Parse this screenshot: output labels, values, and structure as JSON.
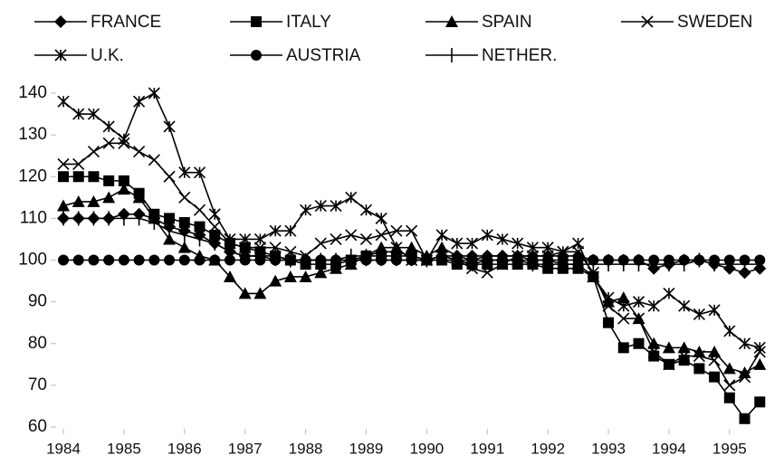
{
  "chart_data": {
    "type": "line",
    "x": [
      1984,
      1984.25,
      1984.5,
      1984.75,
      1985,
      1985.25,
      1985.5,
      1985.75,
      1986,
      1986.25,
      1986.5,
      1986.75,
      1987,
      1987.25,
      1987.5,
      1987.75,
      1988,
      1988.25,
      1988.5,
      1988.75,
      1989,
      1989.25,
      1989.5,
      1989.75,
      1990,
      1990.25,
      1990.5,
      1990.75,
      1991,
      1991.25,
      1991.5,
      1991.75,
      1992,
      1992.25,
      1992.5,
      1992.75,
      1993,
      1993.25,
      1993.5,
      1993.75,
      1994,
      1994.25,
      1994.5,
      1994.75,
      1995,
      1995.25,
      1995.5
    ],
    "xlim": [
      1984,
      1995.75
    ],
    "xticks": [
      1984,
      1985,
      1986,
      1987,
      1988,
      1989,
      1990,
      1991,
      1992,
      1993,
      1994,
      1995
    ],
    "ylim": [
      60,
      140
    ],
    "yticks": [
      60,
      70,
      80,
      90,
      100,
      110,
      120,
      130,
      140
    ],
    "series": [
      {
        "name": "FRANCE",
        "color": "#000000",
        "marker": "diamond",
        "values": [
          110,
          110,
          110,
          110,
          111,
          111,
          110,
          108,
          107,
          106,
          104,
          102,
          101,
          101,
          100,
          100,
          100,
          100,
          100,
          100,
          100,
          100,
          100,
          100,
          100,
          101,
          101,
          101,
          101,
          101,
          101,
          101,
          101,
          101,
          101,
          100,
          100,
          100,
          100,
          98,
          99,
          100,
          100,
          99,
          98,
          97,
          98
        ]
      },
      {
        "name": "ITALY",
        "color": "#000000",
        "marker": "square",
        "values": [
          120,
          120,
          120,
          119,
          119,
          116,
          111,
          110,
          109,
          108,
          106,
          104,
          103,
          102,
          101,
          100,
          99,
          99,
          99,
          100,
          101,
          101,
          101,
          101,
          100,
          100,
          99,
          99,
          99,
          99,
          99,
          99,
          98,
          98,
          98,
          96,
          85,
          79,
          80,
          77,
          75,
          76,
          74,
          72,
          67,
          62,
          66
        ]
      },
      {
        "name": "SPAIN",
        "color": "#000000",
        "marker": "triangle",
        "values": [
          113,
          114,
          114,
          115,
          117,
          115,
          110,
          105,
          103,
          101,
          100,
          96,
          92,
          92,
          95,
          96,
          96,
          97,
          98,
          99,
          101,
          103,
          103,
          103,
          101,
          103,
          101,
          100,
          101,
          101,
          101,
          100,
          100,
          99,
          99,
          96,
          90,
          91,
          86,
          80,
          79,
          79,
          78,
          78,
          74,
          73,
          75
        ]
      },
      {
        "name": "SWEDEN",
        "color": "#000000",
        "marker": "x",
        "values": [
          123,
          123,
          126,
          128,
          128,
          126,
          124,
          120,
          115,
          112,
          108,
          104,
          103,
          103,
          103,
          102,
          101,
          104,
          105,
          106,
          105,
          106,
          107,
          107,
          100,
          101,
          100,
          98,
          97,
          99,
          101,
          101,
          101,
          102,
          102,
          97,
          89,
          86,
          86,
          78,
          75,
          77,
          77,
          76,
          70,
          72,
          78
        ]
      },
      {
        "name": "U.K.",
        "color": "#000000",
        "marker": "star",
        "values": [
          138,
          135,
          135,
          132,
          129,
          138,
          140,
          132,
          121,
          121,
          111,
          105,
          105,
          105,
          107,
          107,
          112,
          113,
          113,
          115,
          112,
          110,
          103,
          100,
          100,
          106,
          104,
          104,
          106,
          105,
          104,
          103,
          103,
          102,
          104,
          96,
          91,
          89,
          90,
          89,
          92,
          89,
          87,
          88,
          83,
          80,
          79
        ]
      },
      {
        "name": "AUSTRIA",
        "color": "#000000",
        "marker": "circle",
        "values": [
          100,
          100,
          100,
          100,
          100,
          100,
          100,
          100,
          100,
          100,
          100,
          100,
          100,
          100,
          100,
          100,
          100,
          100,
          100,
          100,
          100,
          100,
          100,
          100,
          100,
          100,
          100,
          100,
          100,
          100,
          100,
          100,
          100,
          100,
          100,
          100,
          100,
          100,
          100,
          100,
          100,
          100,
          100,
          100,
          100,
          100,
          100
        ]
      },
      {
        "name": "NETHER.",
        "color": "#000000",
        "marker": "plus",
        "values": [
          110,
          110,
          110,
          110,
          110,
          110,
          109,
          107,
          106,
          105,
          104,
          102,
          101,
          101,
          101,
          100,
          100,
          100,
          100,
          101,
          101,
          102,
          102,
          101,
          100,
          101,
          100,
          99,
          100,
          100,
          100,
          99,
          99,
          99,
          99,
          99,
          99,
          99,
          99,
          99,
          99,
          99,
          100,
          99,
          99,
          99,
          99
        ]
      }
    ]
  }
}
